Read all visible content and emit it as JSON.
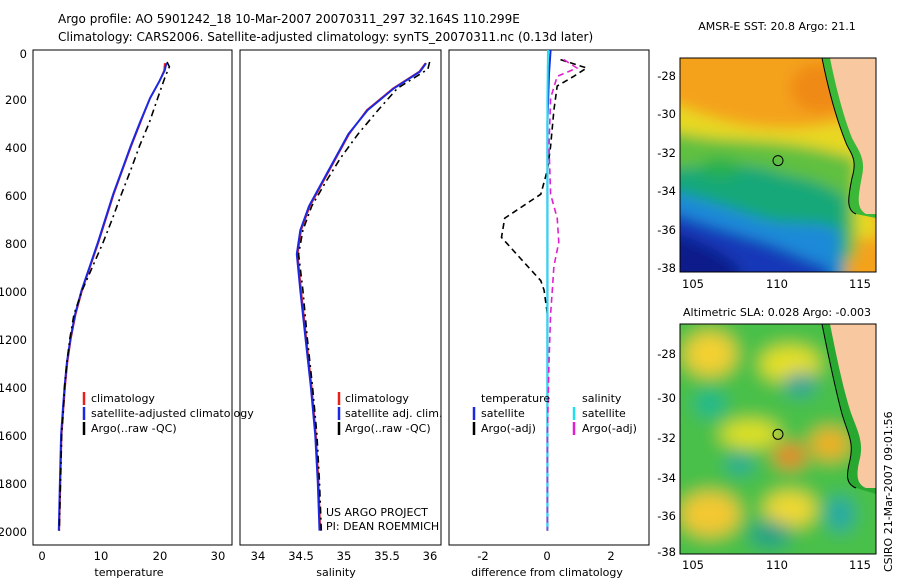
{
  "header": {
    "line1": "Argo profile: AO 5901242_18 10-Mar-2007 20070311_297 32.164S 110.299E",
    "line2": "Climatology: CARS2006. Satellite-adjusted climatology: synTS_20070311.nc (0.13d later)"
  },
  "colors": {
    "clim": "#e8201c",
    "sat": "#1c28e0",
    "argo": "#000000",
    "sal_sat": "#20e0f0",
    "sal_argo": "#e020d0"
  },
  "chart_data": [
    {
      "type": "line",
      "title": "",
      "xlabel": "temperature",
      "ylabel": "",
      "xlim": [
        -2,
        32
      ],
      "ylim": [
        2060,
        0
      ],
      "xticks": [
        "0",
        "10",
        "20",
        "30"
      ],
      "yticks": [
        "0",
        "200",
        "400",
        "600",
        "800",
        "1000",
        "1200",
        "1400",
        "1600",
        "1800",
        "2000"
      ],
      "legend": [
        "climatology",
        "satellite-adjusted climatology",
        "Argo(..raw -QC)"
      ],
      "series": [
        {
          "name": "climatology",
          "color": "clim",
          "dash": "",
          "x": [
            20.5,
            20.4,
            19.6,
            18.0,
            16.4,
            14.8,
            13.3,
            11.8,
            10.5,
            9.2,
            7.8,
            6.4,
            5.3,
            4.5,
            3.9,
            3.5,
            3.2,
            2.9,
            2.7,
            2.5
          ],
          "y": [
            55,
            85,
            130,
            200,
            300,
            400,
            500,
            600,
            700,
            800,
            900,
            1000,
            1100,
            1200,
            1300,
            1400,
            1500,
            1600,
            1800,
            2000
          ]
        },
        {
          "name": "satellite",
          "color": "sat",
          "dash": "",
          "x": [
            20.8,
            20.5,
            19.6,
            18.0,
            16.3,
            14.7,
            13.2,
            11.7,
            10.4,
            9.1,
            7.7,
            6.3,
            5.2,
            4.4,
            3.8,
            3.4,
            3.1,
            2.8,
            2.6,
            2.4
          ],
          "y": [
            55,
            85,
            130,
            200,
            300,
            400,
            500,
            600,
            700,
            800,
            900,
            1000,
            1100,
            1200,
            1300,
            1400,
            1500,
            1600,
            1800,
            2000
          ]
        },
        {
          "name": "Argo(..raw -QC)",
          "color": "argo",
          "dash": "7,4,2,4",
          "x": [
            20.9,
            21.3,
            20.6,
            19.3,
            17.9,
            16.2,
            14.7,
            13.1,
            11.6,
            10.0,
            8.2,
            6.4,
            5.0,
            4.3,
            3.8,
            3.4,
            3.2,
            2.9,
            2.7,
            2.5
          ],
          "y": [
            50,
            70,
            110,
            200,
            300,
            400,
            500,
            600,
            700,
            800,
            900,
            1000,
            1100,
            1200,
            1300,
            1400,
            1500,
            1600,
            1800,
            2000
          ]
        }
      ]
    },
    {
      "type": "line",
      "title": "",
      "xlabel": "salinity",
      "ylabel": "",
      "xlim": [
        33.8,
        36.1
      ],
      "ylim": [
        2060,
        0
      ],
      "xticks": [
        "34",
        "34.5",
        "35",
        "35.5",
        "36"
      ],
      "legend": [
        "climatology",
        "satellite adj. clim.",
        "Argo(..raw -QC)"
      ],
      "annotation": [
        "US ARGO PROJECT",
        "PI: DEAN ROEMMICH"
      ],
      "series": [
        {
          "name": "climatology",
          "color": "clim",
          "dash": "",
          "x": [
            35.92,
            35.85,
            35.55,
            35.25,
            35.05,
            34.9,
            34.75,
            34.6,
            34.5,
            34.46,
            34.5,
            34.56,
            34.62,
            34.67,
            34.7,
            34.72
          ],
          "y": [
            55,
            90,
            160,
            250,
            350,
            450,
            550,
            650,
            750,
            850,
            1000,
            1200,
            1400,
            1600,
            1800,
            2000
          ]
        },
        {
          "name": "satellite",
          "color": "sat",
          "dash": "",
          "x": [
            35.93,
            35.86,
            35.56,
            35.26,
            35.04,
            34.89,
            34.74,
            34.59,
            34.49,
            34.45,
            34.49,
            34.55,
            34.61,
            34.66,
            34.69,
            34.71
          ],
          "y": [
            55,
            90,
            160,
            250,
            350,
            450,
            550,
            650,
            750,
            850,
            1000,
            1200,
            1400,
            1600,
            1800,
            2000
          ]
        },
        {
          "name": "Argo(..raw -QC)",
          "color": "argo",
          "dash": "7,4,2,4",
          "x": [
            35.97,
            35.95,
            35.6,
            35.38,
            35.15,
            34.95,
            34.78,
            34.62,
            34.52,
            34.47,
            34.52,
            34.57,
            34.63,
            34.68,
            34.71,
            34.73
          ],
          "y": [
            50,
            80,
            160,
            250,
            350,
            450,
            550,
            650,
            750,
            850,
            1000,
            1200,
            1400,
            1600,
            1800,
            2000
          ]
        }
      ]
    },
    {
      "type": "line",
      "title": "",
      "xlabel": "difference from climatology",
      "ylabel": "",
      "xlim": [
        -3,
        3.1
      ],
      "ylim": [
        2060,
        0
      ],
      "xticks": [
        "-2",
        "0",
        "2"
      ],
      "legend": [
        "temperature",
        "satellite",
        "Argo(-adj)",
        "salinity",
        "satellite",
        "Argo(-adj)"
      ],
      "series": [
        {
          "name": "temperature satellite",
          "color": "sat",
          "dash": "",
          "x": [
            0.1,
            0.05,
            0.0,
            0.0,
            0.0,
            0.0,
            0.0,
            0.0,
            0.0
          ],
          "y": [
            0,
            100,
            300,
            600,
            900,
            1200,
            1500,
            1800,
            2000
          ]
        },
        {
          "name": "temperature Argo(-adj)",
          "color": "argo",
          "dash": "6,4",
          "x": [
            0.4,
            1.2,
            0.8,
            0.3,
            0.2,
            0.1,
            0.0,
            -0.2,
            -1.3,
            -1.4,
            -0.8,
            -0.2,
            -0.1,
            0.0,
            0.0,
            0.0,
            0.0,
            0.0
          ],
          "y": [
            40,
            75,
            110,
            150,
            250,
            400,
            500,
            600,
            700,
            780,
            870,
            960,
            1000,
            1100,
            1300,
            1500,
            1800,
            2000
          ]
        },
        {
          "name": "salinity satellite",
          "color": "sal_sat",
          "dash": "",
          "x": [
            0.02,
            0.0,
            0.0,
            0.0,
            0.0,
            0.0,
            0.0
          ],
          "y": [
            0,
            200,
            500,
            900,
            1300,
            1700,
            2000
          ]
        },
        {
          "name": "salinity Argo(-adj)",
          "color": "sal_argo",
          "dash": "6,4",
          "x": [
            0.5,
            0.9,
            0.3,
            0.1,
            0.05,
            0.1,
            0.3,
            0.35,
            0.2,
            0.15,
            0.1,
            0.05,
            0.0,
            0.0
          ],
          "y": [
            40,
            75,
            110,
            200,
            400,
            600,
            700,
            800,
            900,
            1000,
            1100,
            1300,
            1600,
            2000
          ]
        }
      ]
    },
    {
      "type": "heatmap",
      "title": "AMSR-E SST: 20.8 Argo: 21.1",
      "xlabel": "",
      "ylabel": "",
      "xlim": [
        104.2,
        116.4
      ],
      "ylim": [
        -38.3,
        -26.5
      ],
      "xticks": [
        "105",
        "110",
        "115"
      ],
      "yticks": [
        "-28",
        "-30",
        "-32",
        "-34",
        "-36",
        "-38"
      ],
      "marker": {
        "lon": 110.3,
        "lat": -32.16
      }
    },
    {
      "type": "heatmap",
      "title": "Altimetric SLA: 0.028 Argo: -0.003",
      "xlabel": "",
      "ylabel": "",
      "xlim": [
        104.2,
        116.4
      ],
      "ylim": [
        -38.3,
        -26.5
      ],
      "xticks": [
        "105",
        "110",
        "115"
      ],
      "yticks": [
        "-28",
        "-30",
        "-32",
        "-34",
        "-36",
        "-38"
      ],
      "marker": {
        "lon": 110.3,
        "lat": -32.16
      }
    }
  ],
  "footer": {
    "credit": "CSIRO 21-Mar-2007 09:01:56"
  }
}
